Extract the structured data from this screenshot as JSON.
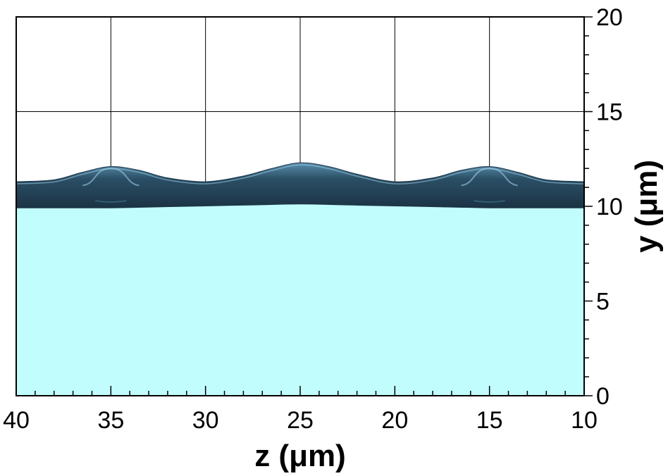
{
  "chart_data": {
    "type": "area",
    "xlabel": "z (μm)",
    "ylabel": "y (μm)",
    "xlim": [
      40,
      10
    ],
    "ylim": [
      0,
      20
    ],
    "x_reversed": true,
    "x_ticks": [
      40,
      35,
      30,
      25,
      20,
      15,
      10
    ],
    "y_ticks": [
      0,
      5,
      10,
      15,
      20
    ],
    "y_axis_position": "right",
    "grid": true,
    "grid_lines_x": [
      35,
      30,
      25,
      20,
      15
    ],
    "grid_lines_y": [
      15
    ],
    "series": [
      {
        "role": "liquid-region",
        "fill": "#c2fdfe",
        "x": [
          40,
          37.5,
          35,
          32.5,
          30,
          27.5,
          25,
          22.5,
          20,
          17.5,
          15,
          12.5,
          10
        ],
        "y": [
          9.9,
          9.9,
          9.9,
          9.95,
          10.0,
          10.05,
          10.1,
          10.05,
          10.0,
          9.95,
          9.9,
          9.9,
          9.9
        ]
      },
      {
        "role": "interface-film-top",
        "fill": "#2b4f66",
        "x": [
          40,
          38,
          36.5,
          35,
          33.5,
          32,
          30,
          28,
          26.5,
          25,
          23.5,
          22,
          20,
          18,
          16.5,
          15,
          13.5,
          12,
          10
        ],
        "y": [
          11.3,
          11.4,
          11.8,
          12.1,
          11.9,
          11.5,
          11.3,
          11.6,
          12.0,
          12.3,
          12.1,
          11.7,
          11.3,
          11.5,
          11.9,
          12.1,
          11.8,
          11.4,
          11.3
        ]
      }
    ]
  },
  "colors": {
    "liquid": "#c2fdfe",
    "film_dark": "#1f3a4d",
    "film_mid": "#3d6d8c",
    "film_highlight": "#9fd0e8",
    "grid": "#000000",
    "axis": "#000000"
  }
}
